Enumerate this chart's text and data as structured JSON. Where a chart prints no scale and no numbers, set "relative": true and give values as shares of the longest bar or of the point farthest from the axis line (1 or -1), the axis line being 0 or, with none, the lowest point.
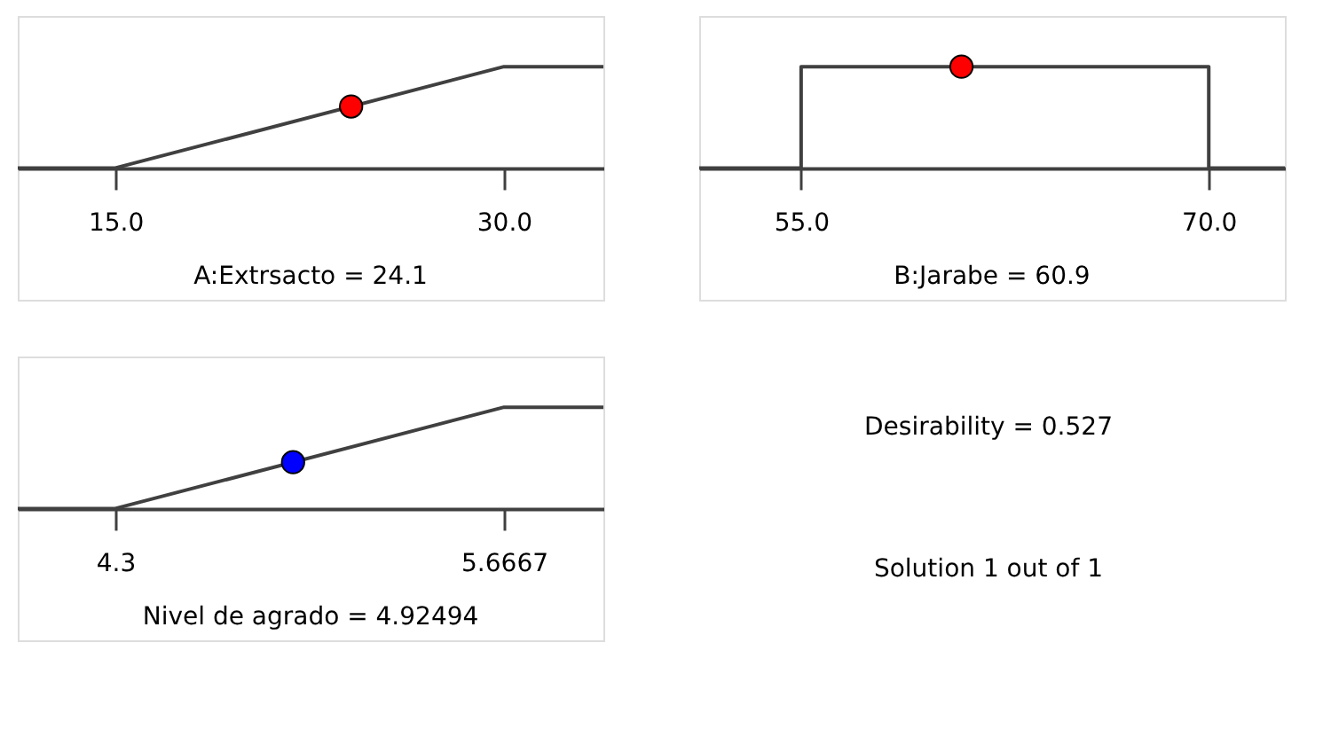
{
  "chart_data": [
    {
      "type": "line",
      "relative": true,
      "xlabel": "A:Extrsacto = 24.1",
      "xlim": [
        11.23,
        33.84
      ],
      "xticks": [
        {
          "value": 15,
          "label": "15.0"
        },
        {
          "value": 30,
          "label": "30.0"
        }
      ],
      "tick_labels": "x",
      "grid": false,
      "series": [
        {
          "type": "line",
          "color": "#404040",
          "x": [
            11.23,
            15,
            30,
            33.84
          ],
          "values": [
            0,
            0,
            1,
            1
          ],
          "marker": "none",
          "line_style": "solid"
        },
        {
          "type": "scatter",
          "color": "#ff0000",
          "x": [
            24.1
          ],
          "values": [
            0.607
          ],
          "marker": "circle"
        }
      ]
    },
    {
      "type": "line",
      "relative": true,
      "xlabel": "B:Jarabe = 60.9",
      "xlim": [
        51.25,
        72.8
      ],
      "xticks": [
        {
          "value": 55,
          "label": "55.0"
        },
        {
          "value": 70,
          "label": "70.0"
        }
      ],
      "tick_labels": "x",
      "grid": false,
      "series": [
        {
          "type": "line",
          "color": "#404040",
          "x": [
            51.25,
            55,
            55,
            70,
            70,
            72.8
          ],
          "values": [
            0,
            0,
            1,
            1,
            0,
            0
          ],
          "marker": "none",
          "line_style": "solid"
        },
        {
          "type": "scatter",
          "color": "#ff0000",
          "x": [
            60.9
          ],
          "values": [
            1
          ],
          "marker": "circle"
        }
      ]
    },
    {
      "type": "line",
      "relative": true,
      "xlabel": "Nivel de agrado = 4.92494",
      "xlim": [
        3.957,
        6.016
      ],
      "xticks": [
        {
          "value": 4.3,
          "label": "4.3"
        },
        {
          "value": 5.6667,
          "label": "5.6667"
        }
      ],
      "tick_labels": "x",
      "grid": false,
      "series": [
        {
          "type": "line",
          "color": "#404040",
          "x": [
            3.957,
            4.3,
            5.6667,
            6.016
          ],
          "values": [
            0,
            0,
            1,
            1
          ],
          "marker": "none",
          "line_style": "solid"
        },
        {
          "type": "scatter",
          "color": "#0000ff",
          "x": [
            4.92494
          ],
          "values": [
            0.457
          ],
          "marker": "circle"
        }
      ]
    },
    {
      "type": "other",
      "annotations": [
        "Desirability = 0.527",
        "Solution 1 out of 1"
      ]
    }
  ]
}
